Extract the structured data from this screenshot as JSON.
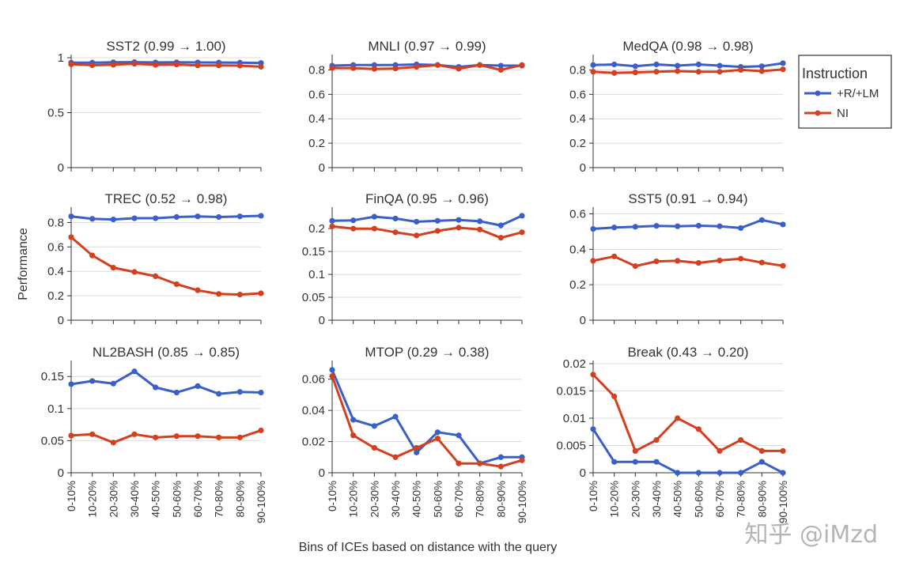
{
  "figure": {
    "xlabel": "Bins of ICEs based on distance with the query",
    "ylabel": "Performance",
    "legend_title": "Instruction",
    "watermark": "知乎 @iMzd",
    "colors": {
      "blue": "#3a5fc8",
      "red": "#d4401f",
      "grid": "#dcdcdc",
      "axis": "#333333"
    }
  },
  "chart_data": [
    {
      "type": "line",
      "title": "SST2 (0.99 → 1.00)",
      "categories": [
        "0-10%",
        "10-20%",
        "20-30%",
        "30-40%",
        "40-50%",
        "50-60%",
        "60-70%",
        "70-80%",
        "80-90%",
        "90-100%"
      ],
      "ylim": [
        0,
        1
      ],
      "yticks": [
        "0",
        "0.5",
        "1"
      ],
      "ytick_values": [
        0,
        0.5,
        1
      ],
      "series": [
        {
          "name": "+R/+LM",
          "color": "#3a5fc8",
          "values": [
            0.955,
            0.955,
            0.958,
            0.96,
            0.957,
            0.958,
            0.957,
            0.956,
            0.955,
            0.952
          ]
        },
        {
          "name": "NI",
          "color": "#d4401f",
          "values": [
            0.94,
            0.932,
            0.936,
            0.945,
            0.935,
            0.938,
            0.93,
            0.93,
            0.928,
            0.918
          ]
        }
      ]
    },
    {
      "type": "line",
      "title": "MNLI (0.97 → 0.99)",
      "categories": [
        "0-10%",
        "10-20%",
        "20-30%",
        "30-40%",
        "40-50%",
        "50-60%",
        "60-70%",
        "70-80%",
        "80-90%",
        "90-100%"
      ],
      "ylim": [
        0,
        0.9
      ],
      "yticks": [
        "0",
        "0.2",
        "0.4",
        "0.6",
        "0.8"
      ],
      "ytick_values": [
        0,
        0.2,
        0.4,
        0.6,
        0.8
      ],
      "series": [
        {
          "name": "+R/+LM",
          "color": "#3a5fc8",
          "values": [
            0.835,
            0.84,
            0.84,
            0.84,
            0.845,
            0.84,
            0.825,
            0.84,
            0.835,
            0.835
          ]
        },
        {
          "name": "NI",
          "color": "#d4401f",
          "values": [
            0.815,
            0.815,
            0.808,
            0.812,
            0.825,
            0.84,
            0.81,
            0.84,
            0.8,
            0.84
          ]
        }
      ]
    },
    {
      "type": "line",
      "title": "MedQA (0.98 → 0.98)",
      "categories": [
        "0-10%",
        "10-20%",
        "20-30%",
        "30-40%",
        "40-50%",
        "50-60%",
        "60-70%",
        "70-80%",
        "80-90%",
        "90-100%"
      ],
      "ylim": [
        0,
        0.9
      ],
      "yticks": [
        "0",
        "0.2",
        "0.4",
        "0.6",
        "0.8"
      ],
      "ytick_values": [
        0,
        0.2,
        0.4,
        0.6,
        0.8
      ],
      "series": [
        {
          "name": "+R/+LM",
          "color": "#3a5fc8",
          "values": [
            0.84,
            0.845,
            0.83,
            0.845,
            0.835,
            0.845,
            0.835,
            0.825,
            0.83,
            0.855
          ]
        },
        {
          "name": "NI",
          "color": "#d4401f",
          "values": [
            0.785,
            0.775,
            0.78,
            0.785,
            0.79,
            0.785,
            0.785,
            0.8,
            0.79,
            0.805
          ]
        }
      ]
    },
    {
      "type": "line",
      "title": "TREC (0.52 → 0.98)",
      "categories": [
        "0-10%",
        "10-20%",
        "20-30%",
        "30-40%",
        "40-50%",
        "50-60%",
        "60-70%",
        "70-80%",
        "80-90%",
        "90-100%"
      ],
      "ylim": [
        0,
        0.9
      ],
      "yticks": [
        "0",
        "0.2",
        "0.4",
        "0.6",
        "0.8"
      ],
      "ytick_values": [
        0,
        0.2,
        0.4,
        0.6,
        0.8
      ],
      "series": [
        {
          "name": "+R/+LM",
          "color": "#3a5fc8",
          "values": [
            0.85,
            0.83,
            0.825,
            0.835,
            0.835,
            0.845,
            0.85,
            0.845,
            0.85,
            0.855
          ]
        },
        {
          "name": "NI",
          "color": "#d4401f",
          "values": [
            0.68,
            0.53,
            0.43,
            0.395,
            0.36,
            0.295,
            0.245,
            0.215,
            0.21,
            0.22
          ]
        }
      ]
    },
    {
      "type": "line",
      "title": "FinQA (0.95 → 0.96)",
      "categories": [
        "0-10%",
        "10-20%",
        "20-30%",
        "30-40%",
        "40-50%",
        "50-60%",
        "60-70%",
        "70-80%",
        "80-90%",
        "90-100%"
      ],
      "ylim": [
        0,
        0.24
      ],
      "yticks": [
        "0",
        "0.05",
        "0.1",
        "0.15",
        "0.2"
      ],
      "ytick_values": [
        0,
        0.05,
        0.1,
        0.15,
        0.2
      ],
      "series": [
        {
          "name": "+R/+LM",
          "color": "#3a5fc8",
          "values": [
            0.217,
            0.218,
            0.226,
            0.222,
            0.215,
            0.217,
            0.219,
            0.216,
            0.207,
            0.228
          ]
        },
        {
          "name": "NI",
          "color": "#d4401f",
          "values": [
            0.205,
            0.2,
            0.2,
            0.192,
            0.185,
            0.195,
            0.202,
            0.198,
            0.18,
            0.192
          ]
        }
      ]
    },
    {
      "type": "line",
      "title": "SST5 (0.91 → 0.94)",
      "categories": [
        "0-10%",
        "10-20%",
        "20-30%",
        "30-40%",
        "40-50%",
        "50-60%",
        "60-70%",
        "70-80%",
        "80-90%",
        "90-100%"
      ],
      "ylim": [
        0,
        0.62
      ],
      "yticks": [
        "0",
        "0.2",
        "0.4",
        "0.6"
      ],
      "ytick_values": [
        0,
        0.2,
        0.4,
        0.6
      ],
      "series": [
        {
          "name": "+R/+LM",
          "color": "#3a5fc8",
          "values": [
            0.515,
            0.523,
            0.527,
            0.532,
            0.53,
            0.533,
            0.53,
            0.52,
            0.565,
            0.54
          ]
        },
        {
          "name": "NI",
          "color": "#d4401f",
          "values": [
            0.335,
            0.36,
            0.305,
            0.332,
            0.335,
            0.323,
            0.337,
            0.347,
            0.325,
            0.307
          ]
        }
      ]
    },
    {
      "type": "line",
      "title": "NL2BASH (0.85 → 0.85)",
      "categories": [
        "0-10%",
        "10-20%",
        "20-30%",
        "30-40%",
        "40-50%",
        "50-60%",
        "60-70%",
        "70-80%",
        "80-90%",
        "90-100%"
      ],
      "ylim": [
        0,
        0.17
      ],
      "yticks": [
        "0",
        "0.05",
        "0.1",
        "0.15"
      ],
      "ytick_values": [
        0,
        0.05,
        0.1,
        0.15
      ],
      "series": [
        {
          "name": "+R/+LM",
          "color": "#3a5fc8",
          "values": [
            0.138,
            0.143,
            0.139,
            0.158,
            0.133,
            0.125,
            0.135,
            0.123,
            0.126,
            0.125
          ]
        },
        {
          "name": "NI",
          "color": "#d4401f",
          "values": [
            0.058,
            0.06,
            0.047,
            0.06,
            0.055,
            0.057,
            0.057,
            0.055,
            0.055,
            0.066
          ]
        }
      ]
    },
    {
      "type": "line",
      "title": "MTOP (0.29 → 0.38)",
      "categories": [
        "0-10%",
        "10-20%",
        "20-30%",
        "30-40%",
        "40-50%",
        "50-60%",
        "60-70%",
        "70-80%",
        "80-90%",
        "90-100%"
      ],
      "ylim": [
        0,
        0.07
      ],
      "yticks": [
        "0",
        "0.02",
        "0.04",
        "0.06"
      ],
      "ytick_values": [
        0,
        0.02,
        0.04,
        0.06
      ],
      "series": [
        {
          "name": "+R/+LM",
          "color": "#3a5fc8",
          "values": [
            0.066,
            0.034,
            0.03,
            0.036,
            0.013,
            0.026,
            0.024,
            0.006,
            0.01,
            0.01
          ]
        },
        {
          "name": "NI",
          "color": "#d4401f",
          "values": [
            0.062,
            0.024,
            0.016,
            0.01,
            0.016,
            0.022,
            0.006,
            0.006,
            0.004,
            0.008
          ]
        }
      ]
    },
    {
      "type": "line",
      "title": "Break (0.43 → 0.20)",
      "categories": [
        "0-10%",
        "10-20%",
        "20-30%",
        "30-40%",
        "40-50%",
        "50-60%",
        "60-70%",
        "70-80%",
        "80-90%",
        "90-100%"
      ],
      "ylim": [
        0,
        0.02
      ],
      "yticks": [
        "0",
        "0.005",
        "0.01",
        "0.015",
        "0.02"
      ],
      "ytick_values": [
        0,
        0.005,
        0.01,
        0.015,
        0.02
      ],
      "series": [
        {
          "name": "+R/+LM",
          "color": "#3a5fc8",
          "values": [
            0.008,
            0.002,
            0.002,
            0.002,
            0.0,
            0.0,
            0.0,
            0.0,
            0.002,
            0.0
          ]
        },
        {
          "name": "NI",
          "color": "#d4401f",
          "values": [
            0.018,
            0.014,
            0.004,
            0.006,
            0.01,
            0.008,
            0.004,
            0.006,
            0.004,
            0.004
          ]
        }
      ]
    }
  ]
}
